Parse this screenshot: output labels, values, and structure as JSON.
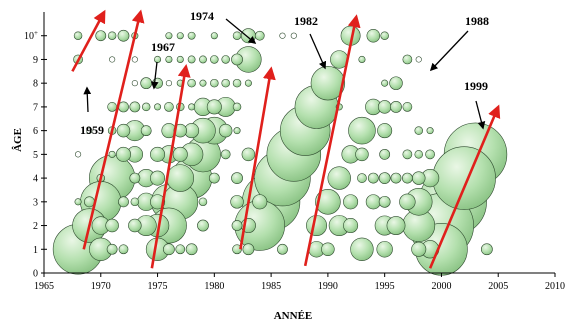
{
  "chart_data": {
    "type": "scatter",
    "title": "",
    "xlabel": "ANNÉE",
    "ylabel": "ÂGE",
    "xlim": [
      1965,
      2010
    ],
    "ylim": [
      0,
      11
    ],
    "x_ticks": [
      "1965",
      "1970",
      "1975",
      "1980",
      "1985",
      "1990",
      "1995",
      "2000",
      "2005",
      "2010"
    ],
    "y_ticks": [
      "0",
      "1",
      "2",
      "3",
      "4",
      "5",
      "6",
      "7",
      "8",
      "9",
      "10+"
    ],
    "grid": false,
    "colors": {
      "bubble_fill": "#a9d9a5",
      "bubble_stroke": "#2e4a2e",
      "arrow": "#e0201c"
    },
    "cohorts": [
      {
        "label": "1959",
        "arrow_from": [
          1967.5,
          8.5
        ],
        "arrow_to": [
          1970.3,
          11.0
        ]
      },
      {
        "label": "1967",
        "arrow_from": [
          1968.5,
          1.0
        ],
        "arrow_to": [
          1973.5,
          11.0
        ]
      },
      {
        "label": "1974",
        "arrow_from": [
          1974.5,
          0.2
        ],
        "arrow_to": [
          1977.5,
          8.7
        ]
      },
      {
        "label": "1982",
        "arrow_from": [
          1982.3,
          1.0
        ],
        "arrow_to": [
          1985.0,
          8.6
        ]
      },
      {
        "label": "1988",
        "arrow_from": [
          1988.0,
          0.3
        ],
        "arrow_to": [
          1992.5,
          10.8
        ]
      },
      {
        "label": "1999",
        "arrow_from": [
          1999.0,
          0.2
        ],
        "arrow_to": [
          2005.0,
          7.0
        ]
      }
    ],
    "bubble_rows": [
      {
        "age": 10,
        "points": [
          [
            1968,
            0.3
          ],
          [
            1970,
            0.5
          ],
          [
            1971,
            0.3
          ],
          [
            1972,
            0.6
          ],
          [
            1973,
            0.2
          ],
          [
            1976,
            0.2
          ],
          [
            1977,
            0.2
          ],
          [
            1978,
            0.25
          ],
          [
            1980,
            0.2
          ],
          [
            1982,
            0.3
          ],
          [
            1983,
            1.0
          ],
          [
            1984,
            0.4
          ],
          [
            1986,
            0.15
          ],
          [
            1987,
            0.15
          ],
          [
            1992,
            1.8
          ],
          [
            1994,
            0.8
          ],
          [
            1995,
            0.3
          ]
        ]
      },
      {
        "age": 9,
        "points": [
          [
            1968,
            0.4
          ],
          [
            1971,
            0.15
          ],
          [
            1973,
            0.15
          ],
          [
            1975,
            0.2
          ],
          [
            1976,
            0.2
          ],
          [
            1977,
            0.2
          ],
          [
            1978,
            0.25
          ],
          [
            1979,
            0.25
          ],
          [
            1980,
            0.3
          ],
          [
            1981,
            0.3
          ],
          [
            1982,
            0.6
          ],
          [
            1983,
            3.2
          ],
          [
            1991,
            1.5
          ],
          [
            1993,
            0.2
          ],
          [
            1997,
            0.4
          ],
          [
            1998,
            0.15
          ]
        ]
      },
      {
        "age": 8,
        "points": [
          [
            1973,
            0.15
          ],
          [
            1974,
            0.6
          ],
          [
            1975,
            0.5
          ],
          [
            1976,
            0.15
          ],
          [
            1977,
            0.2
          ],
          [
            1978,
            0.3
          ],
          [
            1979,
            0.2
          ],
          [
            1980,
            0.3
          ],
          [
            1981,
            0.3
          ],
          [
            1982,
            0.3
          ],
          [
            1983,
            0.2
          ],
          [
            1990,
            5.5
          ],
          [
            1995,
            0.2
          ],
          [
            1996,
            0.8
          ]
        ]
      },
      {
        "age": 7,
        "points": [
          [
            1971,
            0.4
          ],
          [
            1972,
            0.5
          ],
          [
            1973,
            0.5
          ],
          [
            1974,
            0.3
          ],
          [
            1975,
            0.2
          ],
          [
            1976,
            0.4
          ],
          [
            1977,
            0.3
          ],
          [
            1978,
            0.2
          ],
          [
            1979,
            1.5
          ],
          [
            1980,
            1.0
          ],
          [
            1981,
            1.8
          ],
          [
            1982,
            0.3
          ],
          [
            1989,
            9.0
          ],
          [
            1991,
            0.2
          ],
          [
            1994,
            1.2
          ],
          [
            1995,
            0.8
          ],
          [
            1996,
            0.6
          ],
          [
            1997,
            0.4
          ]
        ]
      },
      {
        "age": 6,
        "points": [
          [
            1969,
            0.15
          ],
          [
            1971,
            0.3
          ],
          [
            1972,
            0.8
          ],
          [
            1973,
            2.0
          ],
          [
            1974,
            0.5
          ],
          [
            1976,
            1.0
          ],
          [
            1977,
            0.8
          ],
          [
            1978,
            1.0
          ],
          [
            1979,
            3.0
          ],
          [
            1980,
            3.5
          ],
          [
            1981,
            0.8
          ],
          [
            1982,
            0.2
          ],
          [
            1988,
            12.0
          ],
          [
            1993,
            3.5
          ],
          [
            1995,
            1.0
          ],
          [
            1998,
            0.3
          ],
          [
            1999,
            0.2
          ]
        ]
      },
      {
        "age": 5,
        "points": [
          [
            1968,
            0.15
          ],
          [
            1971,
            0.2
          ],
          [
            1972,
            1.0
          ],
          [
            1973,
            1.2
          ],
          [
            1975,
            1.0
          ],
          [
            1976,
            1.5
          ],
          [
            1977,
            1.0
          ],
          [
            1978,
            2.5
          ],
          [
            1979,
            6.0
          ],
          [
            1981,
            0.4
          ],
          [
            1983,
            0.8
          ],
          [
            1987,
            14.0
          ],
          [
            1992,
            1.5
          ],
          [
            1993,
            0.8
          ],
          [
            1995,
            0.5
          ],
          [
            1997,
            0.4
          ],
          [
            1998,
            0.3
          ],
          [
            1999,
            0.4
          ],
          [
            2003,
            19.0
          ]
        ]
      },
      {
        "age": 4,
        "points": [
          [
            1970,
            0.3
          ],
          [
            1971,
            10.0
          ],
          [
            1973,
            0.5
          ],
          [
            1974,
            1.5
          ],
          [
            1975,
            1.0
          ],
          [
            1977,
            3.5
          ],
          [
            1978,
            8.0
          ],
          [
            1980,
            0.5
          ],
          [
            1982,
            0.6
          ],
          [
            1986,
            15.0
          ],
          [
            1991,
            2.5
          ],
          [
            1993,
            0.4
          ],
          [
            1994,
            0.5
          ],
          [
            1995,
            0.6
          ],
          [
            1996,
            0.5
          ],
          [
            1997,
            0.5
          ],
          [
            1998,
            0.8
          ],
          [
            1999,
            1.5
          ],
          [
            2002,
            19.0
          ]
        ]
      },
      {
        "age": 3,
        "points": [
          [
            1968,
            0.2
          ],
          [
            1969,
            0.5
          ],
          [
            1970,
            8.0
          ],
          [
            1972,
            0.5
          ],
          [
            1973,
            0.3
          ],
          [
            1974,
            1.5
          ],
          [
            1975,
            1.0
          ],
          [
            1976,
            6.0
          ],
          [
            1977,
            6.0
          ],
          [
            1979,
            0.3
          ],
          [
            1982,
            0.8
          ],
          [
            1984,
            1.0
          ],
          [
            1985,
            16.0
          ],
          [
            1990,
            3.0
          ],
          [
            1992,
            1.0
          ],
          [
            1994,
            1.0
          ],
          [
            1995,
            0.6
          ],
          [
            1997,
            1.2
          ],
          [
            1998,
            3.5
          ],
          [
            2001,
            22.0
          ]
        ]
      },
      {
        "age": 2,
        "points": [
          [
            1969,
            5.5
          ],
          [
            1970,
            1.5
          ],
          [
            1971,
            0.8
          ],
          [
            1973,
            0.8
          ],
          [
            1974,
            2.0
          ],
          [
            1975,
            2.5
          ],
          [
            1976,
            6.0
          ],
          [
            1979,
            0.6
          ],
          [
            1982,
            0.5
          ],
          [
            1983,
            1.0
          ],
          [
            1984,
            12.0
          ],
          [
            1989,
            2.0
          ],
          [
            1991,
            2.0
          ],
          [
            1992,
            1.0
          ],
          [
            1995,
            1.8
          ],
          [
            1996,
            1.6
          ],
          [
            1998,
            5.0
          ],
          [
            2000,
            20.0
          ]
        ]
      },
      {
        "age": 1,
        "points": [
          [
            1968,
            12.0
          ],
          [
            1970,
            2.5
          ],
          [
            1971,
            0.5
          ],
          [
            1972,
            0.4
          ],
          [
            1975,
            2.5
          ],
          [
            1976,
            0.6
          ],
          [
            1977,
            0.4
          ],
          [
            1978,
            0.6
          ],
          [
            1982,
            0.4
          ],
          [
            1983,
            0.6
          ],
          [
            1986,
            0.5
          ],
          [
            1989,
            1.2
          ],
          [
            1990,
            0.8
          ],
          [
            1993,
            2.5
          ],
          [
            1995,
            1.2
          ],
          [
            1998,
            1.0
          ],
          [
            1999,
            1.5
          ],
          [
            2000,
            13.0
          ],
          [
            2004,
            0.6
          ]
        ]
      }
    ]
  }
}
